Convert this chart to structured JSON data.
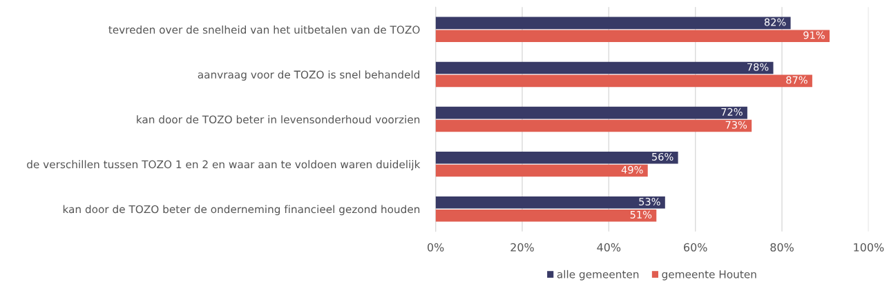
{
  "chart_data": {
    "type": "bar",
    "orientation": "horizontal",
    "categories": [
      "tevreden over de snelheid van het uitbetalen van de TOZO",
      "aanvraag voor de TOZO is snel behandeld",
      "kan door de TOZO beter in levensonderhoud voorzien",
      "de verschillen tussen TOZO 1 en 2 en waar aan te voldoen waren duidelijk",
      "kan door de TOZO beter de onderneming financieel gezond houden"
    ],
    "series": [
      {
        "name": "alle gemeenten",
        "color": "#383a66",
        "values": [
          82,
          78,
          72,
          56,
          53
        ],
        "value_labels": [
          "82%",
          "78%",
          "72%",
          "56%",
          "53%"
        ]
      },
      {
        "name": "gemeente Houten",
        "color": "#e05d50",
        "values": [
          91,
          87,
          73,
          49,
          51
        ],
        "value_labels": [
          "91%",
          "87%",
          "73%",
          "49%",
          "51%"
        ]
      }
    ],
    "xlim": [
      0,
      100
    ],
    "xticks": [
      {
        "value": 0,
        "label": "0%"
      },
      {
        "value": 20,
        "label": "20%"
      },
      {
        "value": 40,
        "label": "40%"
      },
      {
        "value": 60,
        "label": "60%"
      },
      {
        "value": 80,
        "label": "80%"
      },
      {
        "value": 100,
        "label": "100%"
      }
    ],
    "grid": "x",
    "legend": "bottom"
  }
}
